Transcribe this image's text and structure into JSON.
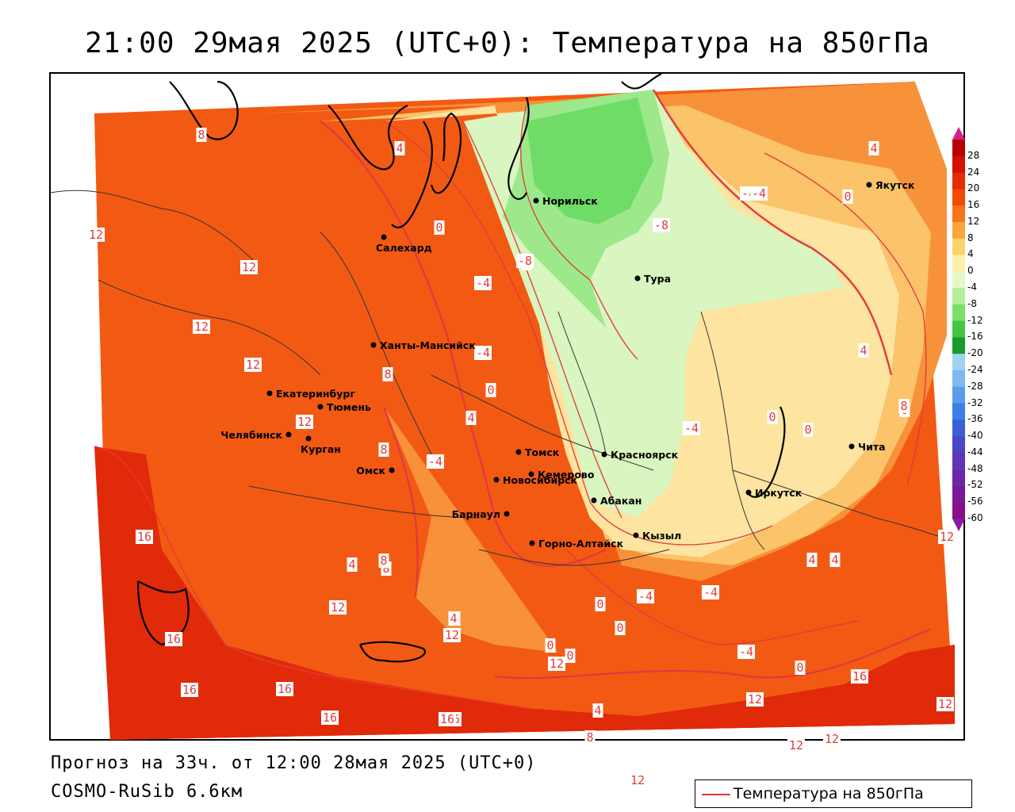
{
  "title": "21:00 29мая 2025 (UTC+0): Температура на 850гПа",
  "footer": {
    "forecast": "Прогноз на 33ч. от 12:00 28мая 2025 (UTC+0)",
    "model": "COSMO-RuSib 6.6км"
  },
  "legend": {
    "label": "Температура на 850гПа",
    "line_color": "#e23a3a"
  },
  "colorbar": {
    "labels": [
      "28",
      "24",
      "20",
      "16",
      "12",
      "8",
      "4",
      "0",
      "-4",
      "-8",
      "-12",
      "-16",
      "-20",
      "-24",
      "-28",
      "-32",
      "-36",
      "-40",
      "-44",
      "-48",
      "-52",
      "-56",
      "-60"
    ],
    "colors": [
      "#b80000",
      "#d41000",
      "#e82a00",
      "#f24a00",
      "#f7741a",
      "#fba43a",
      "#fcd36b",
      "#fdf0aa",
      "#e6f8c6",
      "#b4ef9a",
      "#7be06a",
      "#44c640",
      "#1b9a2c",
      "#9fd3f2",
      "#7cbaf0",
      "#5a9ded",
      "#3d7fe6",
      "#3a5fd8",
      "#4b45c8",
      "#5f35b8",
      "#6e26a8",
      "#7a1898",
      "#86108a"
    ],
    "top_arrow_color": "#d81f8c",
    "bottom_arrow_color": "#8a1aa0"
  },
  "colors": {
    "t16": "#e02a0a",
    "t12": "#f25a14",
    "t8": "#f7913a",
    "t4": "#fbc36a",
    "t0": "#fde4a0",
    "tm4": "#d9f5c0",
    "tm8": "#9ce88a",
    "tm12": "#6fdc68",
    "contour": "#e23a3a",
    "coast": "#000000",
    "border": "#333333"
  },
  "cities": [
    {
      "name": "Норильск"
    },
    {
      "name": "Якутск"
    },
    {
      "name": "Салехард"
    },
    {
      "name": "Тура"
    },
    {
      "name": "Ханты-Мансийск"
    },
    {
      "name": "Екатеринбург"
    },
    {
      "name": "Тюмень"
    },
    {
      "name": "Челябинск"
    },
    {
      "name": "Курган"
    },
    {
      "name": "Томск"
    },
    {
      "name": "Красноярск"
    },
    {
      "name": "Омск"
    },
    {
      "name": "Новосибирск"
    },
    {
      "name": "Кемерово"
    },
    {
      "name": "Абакан"
    },
    {
      "name": "Барнаул"
    },
    {
      "name": "Иркутск"
    },
    {
      "name": "Кызыл"
    },
    {
      "name": "Горно-Алтайск"
    },
    {
      "name": "Чита"
    }
  ],
  "contour_labels": [
    "8",
    "4",
    "0",
    "-4",
    "-8",
    "-4",
    "0",
    "4",
    "8",
    "12",
    "12",
    "12",
    "12",
    "12",
    "16",
    "16",
    "16",
    "16",
    "16",
    "16",
    "12",
    "12",
    "8",
    "4",
    "0",
    "-4",
    "-4",
    "0",
    "4",
    "8",
    "12",
    "8",
    "4",
    "0",
    "-4",
    "-8",
    "-4",
    "0",
    "0",
    "4",
    "-4",
    "12",
    "16",
    "12",
    "12",
    "4",
    "12",
    "8",
    "0",
    "-4",
    "4",
    "0",
    "8",
    "16",
    "12",
    "8",
    "12",
    "4",
    "4",
    "0",
    "-4",
    "0"
  ]
}
